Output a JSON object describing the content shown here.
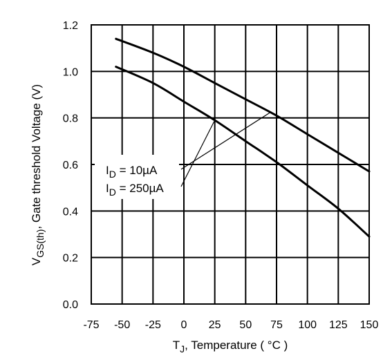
{
  "chart_data": {
    "type": "line",
    "title": "",
    "xlabel": {
      "main": "T",
      "sub": "J",
      "rest": ", Temperature ( °C )"
    },
    "ylabel": {
      "main": "V",
      "sub": "GS(th)",
      "rest": ", Gate threshold Voltage (V)"
    },
    "xlim": [
      -75,
      150
    ],
    "ylim": [
      0,
      1.2
    ],
    "xticks": [
      -75,
      -50,
      -25,
      0,
      25,
      50,
      75,
      100,
      125,
      150
    ],
    "xtick_labels": [
      "-75",
      "-50",
      "-25",
      "0",
      "25",
      "50",
      "75",
      "100",
      "125",
      "150"
    ],
    "yticks": [
      0,
      0.2,
      0.4,
      0.6,
      0.8,
      1.0,
      1.2
    ],
    "ytick_labels": [
      "0.0",
      "0.2",
      "0.4",
      "0.6",
      "0.8",
      "1.0",
      "1.2"
    ],
    "grid": true,
    "series": [
      {
        "name": {
          "main": "I",
          "sub": "D",
          "rest": " = 10µA"
        },
        "x": [
          -55,
          -25,
          0,
          25,
          50,
          75,
          100,
          125,
          150
        ],
        "y": [
          1.14,
          1.08,
          1.02,
          0.95,
          0.88,
          0.81,
          0.73,
          0.65,
          0.57
        ]
      },
      {
        "name": {
          "main": "I",
          "sub": "D",
          "rest": " = 250µA"
        },
        "x": [
          -55,
          -25,
          0,
          25,
          50,
          75,
          100,
          125,
          150
        ],
        "y": [
          1.02,
          0.95,
          0.87,
          0.79,
          0.7,
          0.61,
          0.51,
          0.41,
          0.29
        ]
      }
    ],
    "legend_placement": "left-middle",
    "line_color": "#000000"
  }
}
